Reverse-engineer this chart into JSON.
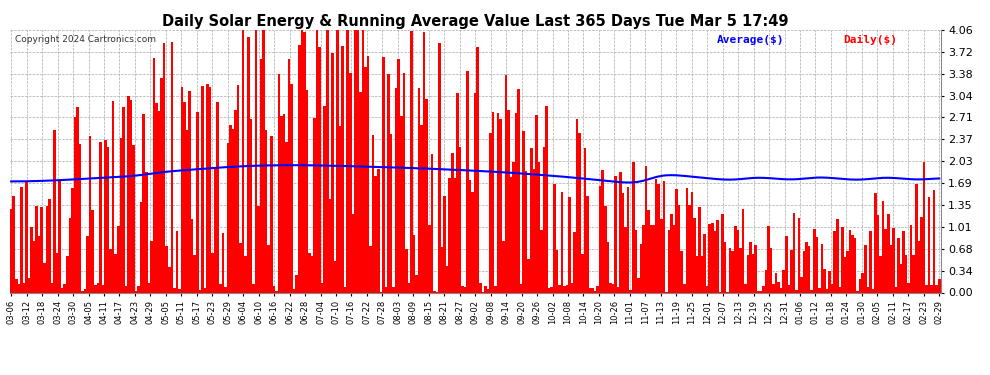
{
  "title": "Daily Solar Energy & Running Average Value Last 365 Days Tue Mar 5 17:49",
  "copyright": "Copyright 2024 Cartronics.com",
  "legend_avg": "Average($)",
  "legend_daily": "Daily($)",
  "yticks": [
    0.0,
    0.34,
    0.68,
    1.01,
    1.35,
    1.69,
    2.03,
    2.37,
    2.71,
    3.04,
    3.38,
    3.72,
    4.06
  ],
  "ylim": [
    0.0,
    4.06
  ],
  "bar_color": "#ff0000",
  "avg_color": "#0000ff",
  "bg_color": "#ffffff",
  "grid_color": "#aaaaaa",
  "title_color": "#000000",
  "copyright_color": "#000000",
  "x_labels": [
    "03-06",
    "03-12",
    "03-18",
    "03-24",
    "03-30",
    "04-05",
    "04-11",
    "04-17",
    "04-23",
    "04-29",
    "05-05",
    "05-11",
    "05-17",
    "05-23",
    "05-29",
    "06-04",
    "06-10",
    "06-16",
    "06-22",
    "06-28",
    "07-04",
    "07-10",
    "07-16",
    "07-22",
    "07-28",
    "08-03",
    "08-09",
    "08-15",
    "08-21",
    "08-27",
    "09-02",
    "09-08",
    "09-14",
    "09-20",
    "09-26",
    "10-02",
    "10-08",
    "10-14",
    "10-20",
    "10-26",
    "11-01",
    "11-07",
    "11-13",
    "11-19",
    "11-25",
    "12-01",
    "12-07",
    "12-13",
    "12-19",
    "12-25",
    "12-31",
    "01-06",
    "01-12",
    "01-18",
    "01-24",
    "01-30",
    "02-05",
    "02-11",
    "02-17",
    "02-23",
    "02-29"
  ],
  "n_days": 365,
  "avg_values": [
    1.72,
    1.718,
    1.715,
    1.716,
    1.717,
    1.718,
    1.72,
    1.719,
    1.721,
    1.722,
    1.723,
    1.724,
    1.725,
    1.727,
    1.728,
    1.73,
    1.731,
    1.733,
    1.735,
    1.737,
    1.739,
    1.741,
    1.743,
    1.745,
    1.748,
    1.75,
    1.752,
    1.754,
    1.757,
    1.759,
    1.761,
    1.763,
    1.766,
    1.768,
    1.77,
    1.772,
    1.774,
    1.776,
    1.778,
    1.78,
    1.782,
    1.784,
    1.786,
    1.788,
    1.79,
    1.792,
    1.794,
    1.796,
    1.798,
    1.8,
    1.802,
    1.81,
    1.818,
    1.826,
    1.834,
    1.842,
    1.85,
    1.858,
    1.862,
    1.865,
    1.868,
    1.871,
    1.874,
    1.877,
    1.88,
    1.883,
    1.886,
    1.889,
    1.892,
    1.895,
    1.898,
    1.901,
    1.904,
    1.907,
    1.91,
    1.913,
    1.916,
    1.919,
    1.922,
    1.925,
    1.928,
    1.931,
    1.934,
    1.937,
    1.94,
    1.942,
    1.944,
    1.946,
    1.948,
    1.95,
    1.952,
    1.954,
    1.956,
    1.958,
    1.96,
    1.961,
    1.962,
    1.963,
    1.964,
    1.965,
    1.966,
    1.967,
    1.967,
    1.968,
    1.968,
    1.969,
    1.969,
    1.969,
    1.97,
    1.97,
    1.97,
    1.97,
    1.97,
    1.97,
    1.97,
    1.969,
    1.969,
    1.968,
    1.968,
    1.967,
    1.967,
    1.966,
    1.965,
    1.964,
    1.963,
    1.962,
    1.961,
    1.96,
    1.959,
    1.958,
    1.957,
    1.956,
    1.955,
    1.954,
    1.953,
    1.952,
    1.95,
    1.949,
    1.948,
    1.947,
    1.946,
    1.945,
    1.944,
    1.943,
    1.942,
    1.94,
    1.939,
    1.938,
    1.937,
    1.936,
    1.934,
    1.933,
    1.932,
    1.931,
    1.93,
    1.928,
    1.927,
    1.926,
    1.924,
    1.923,
    1.921,
    1.92,
    1.918,
    1.917,
    1.915,
    1.913,
    1.912,
    1.91,
    1.908,
    1.907,
    1.905,
    1.903,
    1.901,
    1.9,
    1.898,
    1.896,
    1.894,
    1.893,
    1.891,
    1.889,
    1.887,
    1.885,
    1.883,
    1.881,
    1.879,
    1.877,
    1.875,
    1.873,
    1.871,
    1.869,
    1.867,
    1.865,
    1.862,
    1.86,
    1.858,
    1.855,
    1.853,
    1.85,
    1.847,
    1.845,
    1.842,
    1.839,
    1.836,
    1.833,
    1.83,
    1.827,
    1.824,
    1.821,
    1.818,
    1.815,
    1.812,
    1.809,
    1.806,
    1.803,
    1.8,
    1.797,
    1.794,
    1.791,
    1.788,
    1.784,
    1.78,
    1.776,
    1.772,
    1.768,
    1.764,
    1.76,
    1.756,
    1.752,
    1.748,
    1.744,
    1.74,
    1.736,
    1.732,
    1.728,
    1.724,
    1.72,
    1.716,
    1.712,
    1.708,
    1.704,
    1.7,
    1.696,
    1.692,
    1.688,
    1.684,
    1.68,
    1.676,
    1.672,
    1.668,
    1.664,
    1.66,
    1.856,
    1.852,
    1.848,
    1.844,
    1.84,
    1.836,
    1.832,
    1.828,
    1.824,
    1.82,
    1.816,
    1.812,
    1.808,
    1.804,
    1.8,
    1.796,
    1.792,
    1.788,
    1.784,
    1.78,
    1.776,
    1.772,
    1.768,
    1.764,
    1.76,
    1.756,
    1.752,
    1.748,
    1.744,
    1.74,
    1.736,
    1.732,
    1.728,
    1.724,
    1.72,
    1.716,
    1.712,
    1.808,
    1.804,
    1.8,
    1.796,
    1.792,
    1.788,
    1.784,
    1.78,
    1.776,
    1.772,
    1.768,
    1.764,
    1.76,
    1.756,
    1.752,
    1.748,
    1.744,
    1.74,
    1.736,
    1.732,
    1.728,
    1.724,
    1.72,
    1.716,
    1.812,
    1.808,
    1.804,
    1.8,
    1.796,
    1.792,
    1.788,
    1.784,
    1.78,
    1.776,
    1.772,
    1.768,
    1.764,
    1.76,
    1.756,
    1.752,
    1.748,
    1.744,
    1.74,
    1.736,
    1.732,
    1.728,
    1.724,
    1.72,
    1.716,
    1.712,
    1.808,
    1.804,
    1.8,
    1.796,
    1.792,
    1.788,
    1.784,
    1.78,
    1.776,
    1.772,
    1.768,
    1.764,
    1.76,
    1.756,
    1.752,
    1.748,
    1.744,
    1.74,
    1.736,
    1.732,
    1.728,
    1.724,
    1.72,
    1.716,
    1.812,
    1.808,
    1.804,
    1.8
  ]
}
